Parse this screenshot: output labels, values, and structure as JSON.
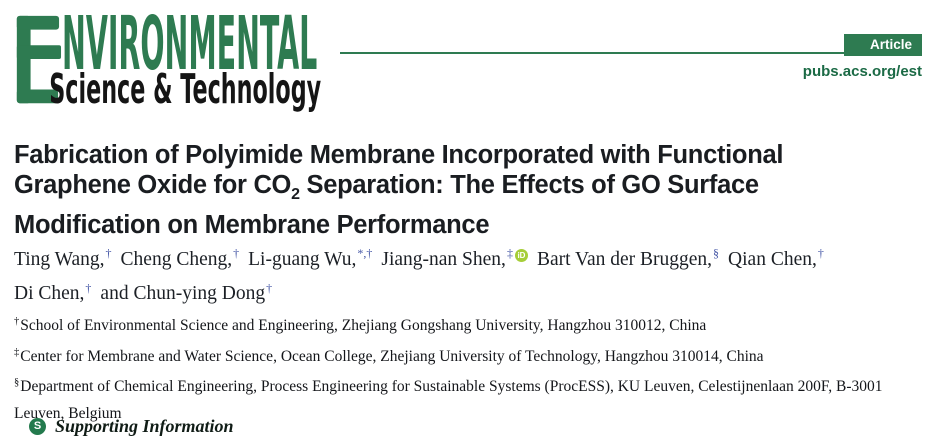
{
  "journal": {
    "name_big_letter": "E",
    "name_top": "NVIRONMENTAL",
    "name_bottom": "Science & Technology",
    "badge": "Article",
    "url": "pubs.acs.org/est"
  },
  "colors": {
    "brand_green": "#2e7b51",
    "url_green": "#1b6a45",
    "marker_blue": "#4456a6",
    "orcid_green": "#a6ce39",
    "si_circle_green": "#237a4d",
    "title_text": "#1a1d21"
  },
  "title": {
    "plain": "Fabrication of Polyimide Membrane Incorporated with Functional Graphene Oxide for CO2 Separation: The Effects of GO Surface Modification on Membrane Performance",
    "segments": [
      {
        "t": "Fabrication of Polyimide Membrane Incorporated with Functional"
      },
      {
        "br": true
      },
      {
        "t": "Graphene Oxide for CO"
      },
      {
        "t": "2",
        "sub": true
      },
      {
        "t": " Separation: The Effects of GO Surface"
      },
      {
        "br": true
      },
      {
        "t": "Modification on Membrane Performance"
      }
    ]
  },
  "authors": {
    "lines": [
      [
        {
          "name": "Ting Wang,",
          "sup": "†"
        },
        {
          "name": "Cheng Cheng,",
          "sup": "†"
        },
        {
          "name": "Li-guang Wu,",
          "sup": "*,†"
        },
        {
          "name": "Jiang-nan Shen,",
          "sup": "‡",
          "orcid": true
        },
        {
          "name": "Bart Van der Bruggen,",
          "sup": "§"
        },
        {
          "name": "Qian Chen,",
          "sup": "†"
        }
      ],
      [
        {
          "name": "Di Chen,",
          "sup": "†"
        },
        {
          "name": "and Chun-ying Dong",
          "sup": "†"
        }
      ]
    ],
    "orcid_label": "iD"
  },
  "affiliations": [
    {
      "sup": "†",
      "text": "School of Environmental Science and Engineering, Zhejiang Gongshang University, Hangzhou 310012, China"
    },
    {
      "sup": "‡",
      "text": "Center for Membrane and Water Science, Ocean College, Zhejiang University of Technology, Hangzhou 310014, China"
    },
    {
      "sup": "§",
      "text": "Department of Chemical Engineering, Process Engineering for Sustainable Systems (ProcESS), KU Leuven, Celestijnenlaan 200F, B-3001 Leuven, Belgium"
    }
  ],
  "supporting": {
    "icon_letter": "S",
    "label": "Supporting Information"
  }
}
